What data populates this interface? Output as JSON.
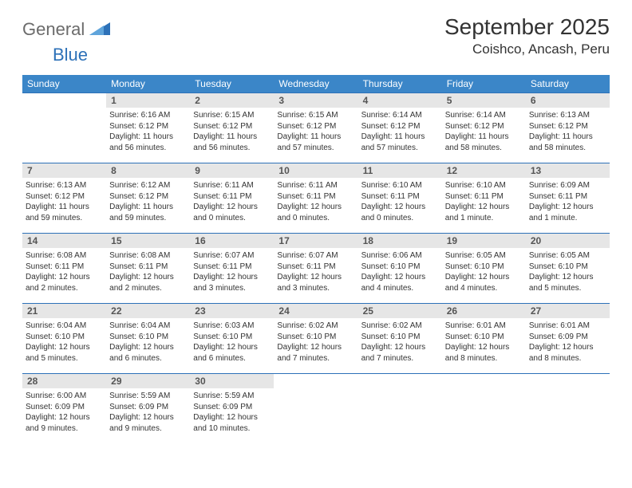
{
  "brand": {
    "part1": "General",
    "part2": "Blue"
  },
  "title": "September 2025",
  "location": "Coishco, Ancash, Peru",
  "colors": {
    "header_bg": "#3b86c8",
    "header_text": "#ffffff",
    "daynum_bg": "#e6e6e6",
    "border": "#2d71b8",
    "logo_gray": "#6b6b6b",
    "logo_blue": "#2d71b8"
  },
  "weekdays": [
    "Sunday",
    "Monday",
    "Tuesday",
    "Wednesday",
    "Thursday",
    "Friday",
    "Saturday"
  ],
  "weeks": [
    [
      {
        "n": "",
        "empty": true,
        "sunrise": "",
        "sunset": "",
        "daylight_a": "",
        "daylight_b": ""
      },
      {
        "n": "1",
        "sunrise": "Sunrise: 6:16 AM",
        "sunset": "Sunset: 6:12 PM",
        "daylight_a": "Daylight: 11 hours",
        "daylight_b": "and 56 minutes."
      },
      {
        "n": "2",
        "sunrise": "Sunrise: 6:15 AM",
        "sunset": "Sunset: 6:12 PM",
        "daylight_a": "Daylight: 11 hours",
        "daylight_b": "and 56 minutes."
      },
      {
        "n": "3",
        "sunrise": "Sunrise: 6:15 AM",
        "sunset": "Sunset: 6:12 PM",
        "daylight_a": "Daylight: 11 hours",
        "daylight_b": "and 57 minutes."
      },
      {
        "n": "4",
        "sunrise": "Sunrise: 6:14 AM",
        "sunset": "Sunset: 6:12 PM",
        "daylight_a": "Daylight: 11 hours",
        "daylight_b": "and 57 minutes."
      },
      {
        "n": "5",
        "sunrise": "Sunrise: 6:14 AM",
        "sunset": "Sunset: 6:12 PM",
        "daylight_a": "Daylight: 11 hours",
        "daylight_b": "and 58 minutes."
      },
      {
        "n": "6",
        "sunrise": "Sunrise: 6:13 AM",
        "sunset": "Sunset: 6:12 PM",
        "daylight_a": "Daylight: 11 hours",
        "daylight_b": "and 58 minutes."
      }
    ],
    [
      {
        "n": "7",
        "sunrise": "Sunrise: 6:13 AM",
        "sunset": "Sunset: 6:12 PM",
        "daylight_a": "Daylight: 11 hours",
        "daylight_b": "and 59 minutes."
      },
      {
        "n": "8",
        "sunrise": "Sunrise: 6:12 AM",
        "sunset": "Sunset: 6:12 PM",
        "daylight_a": "Daylight: 11 hours",
        "daylight_b": "and 59 minutes."
      },
      {
        "n": "9",
        "sunrise": "Sunrise: 6:11 AM",
        "sunset": "Sunset: 6:11 PM",
        "daylight_a": "Daylight: 12 hours",
        "daylight_b": "and 0 minutes."
      },
      {
        "n": "10",
        "sunrise": "Sunrise: 6:11 AM",
        "sunset": "Sunset: 6:11 PM",
        "daylight_a": "Daylight: 12 hours",
        "daylight_b": "and 0 minutes."
      },
      {
        "n": "11",
        "sunrise": "Sunrise: 6:10 AM",
        "sunset": "Sunset: 6:11 PM",
        "daylight_a": "Daylight: 12 hours",
        "daylight_b": "and 0 minutes."
      },
      {
        "n": "12",
        "sunrise": "Sunrise: 6:10 AM",
        "sunset": "Sunset: 6:11 PM",
        "daylight_a": "Daylight: 12 hours",
        "daylight_b": "and 1 minute."
      },
      {
        "n": "13",
        "sunrise": "Sunrise: 6:09 AM",
        "sunset": "Sunset: 6:11 PM",
        "daylight_a": "Daylight: 12 hours",
        "daylight_b": "and 1 minute."
      }
    ],
    [
      {
        "n": "14",
        "sunrise": "Sunrise: 6:08 AM",
        "sunset": "Sunset: 6:11 PM",
        "daylight_a": "Daylight: 12 hours",
        "daylight_b": "and 2 minutes."
      },
      {
        "n": "15",
        "sunrise": "Sunrise: 6:08 AM",
        "sunset": "Sunset: 6:11 PM",
        "daylight_a": "Daylight: 12 hours",
        "daylight_b": "and 2 minutes."
      },
      {
        "n": "16",
        "sunrise": "Sunrise: 6:07 AM",
        "sunset": "Sunset: 6:11 PM",
        "daylight_a": "Daylight: 12 hours",
        "daylight_b": "and 3 minutes."
      },
      {
        "n": "17",
        "sunrise": "Sunrise: 6:07 AM",
        "sunset": "Sunset: 6:11 PM",
        "daylight_a": "Daylight: 12 hours",
        "daylight_b": "and 3 minutes."
      },
      {
        "n": "18",
        "sunrise": "Sunrise: 6:06 AM",
        "sunset": "Sunset: 6:10 PM",
        "daylight_a": "Daylight: 12 hours",
        "daylight_b": "and 4 minutes."
      },
      {
        "n": "19",
        "sunrise": "Sunrise: 6:05 AM",
        "sunset": "Sunset: 6:10 PM",
        "daylight_a": "Daylight: 12 hours",
        "daylight_b": "and 4 minutes."
      },
      {
        "n": "20",
        "sunrise": "Sunrise: 6:05 AM",
        "sunset": "Sunset: 6:10 PM",
        "daylight_a": "Daylight: 12 hours",
        "daylight_b": "and 5 minutes."
      }
    ],
    [
      {
        "n": "21",
        "sunrise": "Sunrise: 6:04 AM",
        "sunset": "Sunset: 6:10 PM",
        "daylight_a": "Daylight: 12 hours",
        "daylight_b": "and 5 minutes."
      },
      {
        "n": "22",
        "sunrise": "Sunrise: 6:04 AM",
        "sunset": "Sunset: 6:10 PM",
        "daylight_a": "Daylight: 12 hours",
        "daylight_b": "and 6 minutes."
      },
      {
        "n": "23",
        "sunrise": "Sunrise: 6:03 AM",
        "sunset": "Sunset: 6:10 PM",
        "daylight_a": "Daylight: 12 hours",
        "daylight_b": "and 6 minutes."
      },
      {
        "n": "24",
        "sunrise": "Sunrise: 6:02 AM",
        "sunset": "Sunset: 6:10 PM",
        "daylight_a": "Daylight: 12 hours",
        "daylight_b": "and 7 minutes."
      },
      {
        "n": "25",
        "sunrise": "Sunrise: 6:02 AM",
        "sunset": "Sunset: 6:10 PM",
        "daylight_a": "Daylight: 12 hours",
        "daylight_b": "and 7 minutes."
      },
      {
        "n": "26",
        "sunrise": "Sunrise: 6:01 AM",
        "sunset": "Sunset: 6:10 PM",
        "daylight_a": "Daylight: 12 hours",
        "daylight_b": "and 8 minutes."
      },
      {
        "n": "27",
        "sunrise": "Sunrise: 6:01 AM",
        "sunset": "Sunset: 6:09 PM",
        "daylight_a": "Daylight: 12 hours",
        "daylight_b": "and 8 minutes."
      }
    ],
    [
      {
        "n": "28",
        "sunrise": "Sunrise: 6:00 AM",
        "sunset": "Sunset: 6:09 PM",
        "daylight_a": "Daylight: 12 hours",
        "daylight_b": "and 9 minutes."
      },
      {
        "n": "29",
        "sunrise": "Sunrise: 5:59 AM",
        "sunset": "Sunset: 6:09 PM",
        "daylight_a": "Daylight: 12 hours",
        "daylight_b": "and 9 minutes."
      },
      {
        "n": "30",
        "sunrise": "Sunrise: 5:59 AM",
        "sunset": "Sunset: 6:09 PM",
        "daylight_a": "Daylight: 12 hours",
        "daylight_b": "and 10 minutes."
      },
      {
        "n": "",
        "empty": true,
        "sunrise": "",
        "sunset": "",
        "daylight_a": "",
        "daylight_b": ""
      },
      {
        "n": "",
        "empty": true,
        "sunrise": "",
        "sunset": "",
        "daylight_a": "",
        "daylight_b": ""
      },
      {
        "n": "",
        "empty": true,
        "sunrise": "",
        "sunset": "",
        "daylight_a": "",
        "daylight_b": ""
      },
      {
        "n": "",
        "empty": true,
        "sunrise": "",
        "sunset": "",
        "daylight_a": "",
        "daylight_b": ""
      }
    ]
  ]
}
